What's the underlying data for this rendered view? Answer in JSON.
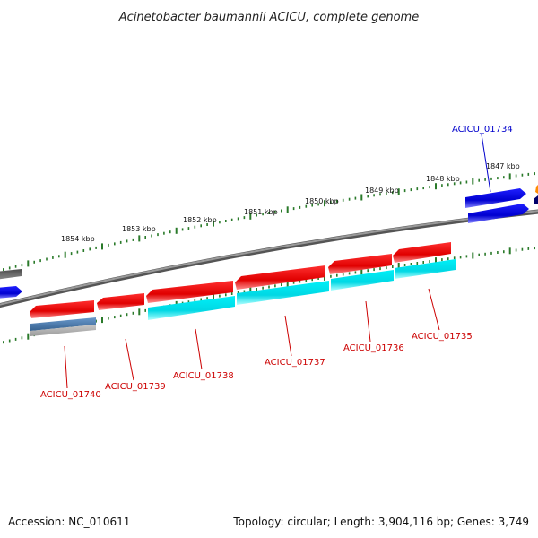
{
  "title": "Acinetobacter baumannii ACICU, complete genome",
  "footer": {
    "accession": "Accession: NC_010611",
    "topology": "Topology: circular; Length: 3,904,116 bp; Genes: 3,749"
  },
  "ticks": [
    {
      "label": "1847 kbp"
    },
    {
      "label": "1848 kbp"
    },
    {
      "label": "1849 kbp"
    },
    {
      "label": "1850 kbp"
    },
    {
      "label": "1851 kbp"
    },
    {
      "label": "1852 kbp"
    },
    {
      "label": "1853 kbp"
    },
    {
      "label": "1854 kbp"
    }
  ],
  "genes": [
    {
      "name": "ACICU_01734",
      "color": "#0000cc"
    },
    {
      "name": "ACICU_01735",
      "color": "#cc0000"
    },
    {
      "name": "ACICU_01736",
      "color": "#cc0000"
    },
    {
      "name": "ACICU_01737",
      "color": "#cc0000"
    },
    {
      "name": "ACICU_01738",
      "color": "#cc0000"
    },
    {
      "name": "ACICU_01739",
      "color": "#cc0000"
    },
    {
      "name": "ACICU_01740",
      "color": "#cc0000"
    }
  ],
  "colors": {
    "cds_reverse": "#ee1111",
    "cds_forward": "#1111dd",
    "feature_cyan": "#00e5ee",
    "feature_blue_grey": "#4f7faf",
    "feature_grey": "#b8b8b8",
    "backbone": "#777777",
    "ticks": "#2a7a2a"
  }
}
